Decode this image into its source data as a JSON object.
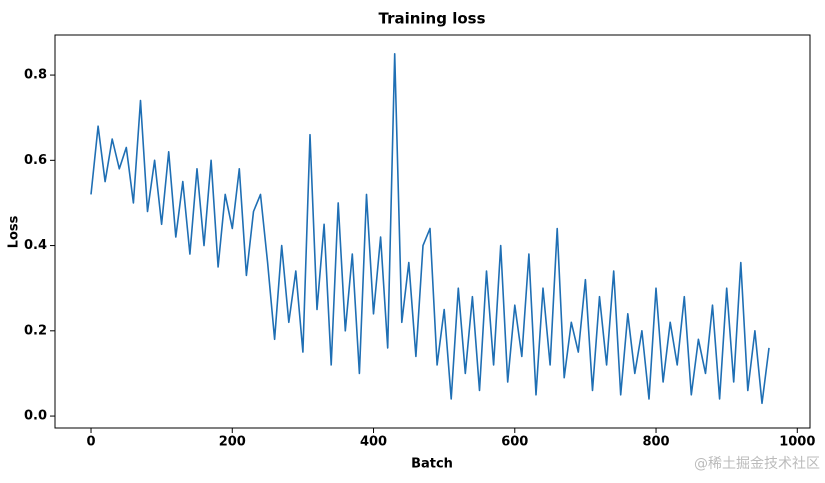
{
  "chart_data": {
    "type": "line",
    "title": "Training loss",
    "x_label": "Batch",
    "y_label": "Loss",
    "x": [
      0,
      10,
      20,
      30,
      40,
      50,
      60,
      70,
      80,
      90,
      100,
      110,
      120,
      130,
      140,
      150,
      160,
      170,
      180,
      190,
      200,
      210,
      220,
      230,
      240,
      250,
      260,
      270,
      280,
      290,
      300,
      310,
      320,
      330,
      340,
      350,
      360,
      370,
      380,
      390,
      400,
      410,
      420,
      430,
      440,
      450,
      460,
      470,
      480,
      490,
      500,
      510,
      520,
      530,
      540,
      550,
      560,
      570,
      580,
      590,
      600,
      610,
      620,
      630,
      640,
      650,
      660,
      670,
      680,
      690,
      700,
      710,
      720,
      730,
      740,
      750,
      760,
      770,
      780,
      790,
      800,
      810,
      820,
      830,
      840,
      850,
      860,
      870,
      880,
      890,
      900,
      910,
      920,
      930,
      940,
      950,
      960
    ],
    "series": [
      {
        "name": "Loss",
        "color": "#1f6fb4",
        "values": [
          0.52,
          0.68,
          0.55,
          0.65,
          0.58,
          0.63,
          0.5,
          0.74,
          0.48,
          0.6,
          0.45,
          0.62,
          0.42,
          0.55,
          0.38,
          0.58,
          0.4,
          0.6,
          0.35,
          0.52,
          0.44,
          0.58,
          0.33,
          0.48,
          0.52,
          0.36,
          0.18,
          0.4,
          0.22,
          0.34,
          0.15,
          0.66,
          0.25,
          0.45,
          0.12,
          0.5,
          0.2,
          0.38,
          0.1,
          0.52,
          0.24,
          0.42,
          0.16,
          0.85,
          0.22,
          0.36,
          0.14,
          0.4,
          0.44,
          0.12,
          0.25,
          0.04,
          0.3,
          0.1,
          0.28,
          0.06,
          0.34,
          0.12,
          0.4,
          0.08,
          0.26,
          0.14,
          0.38,
          0.05,
          0.3,
          0.12,
          0.44,
          0.09,
          0.22,
          0.15,
          0.32,
          0.06,
          0.28,
          0.12,
          0.34,
          0.05,
          0.24,
          0.1,
          0.2,
          0.04,
          0.3,
          0.08,
          0.22,
          0.12,
          0.28,
          0.05,
          0.18,
          0.1,
          0.26,
          0.04,
          0.3,
          0.08,
          0.36,
          0.06,
          0.2,
          0.03,
          0.16
        ]
      }
    ],
    "xlim": [
      -51,
      1018
    ],
    "ylim": [
      -0.028,
      0.894
    ],
    "xticks": [
      0,
      200,
      400,
      600,
      800,
      1000
    ],
    "yticks": [
      {
        "value": 0,
        "label": "0.0"
      },
      0.2,
      0.4,
      0.6,
      0.8
    ],
    "watermark": "@稀土掘金技术社区"
  }
}
